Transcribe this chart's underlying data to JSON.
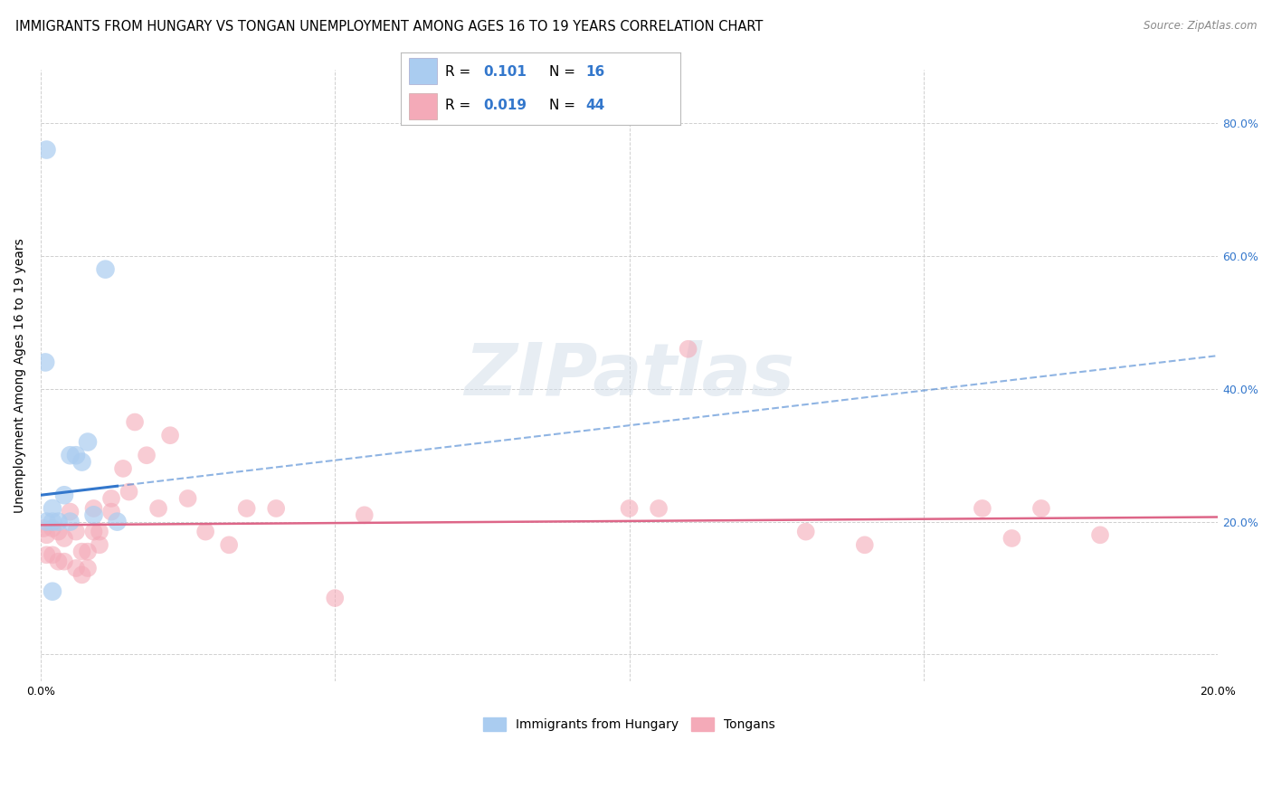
{
  "title": "IMMIGRANTS FROM HUNGARY VS TONGAN UNEMPLOYMENT AMONG AGES 16 TO 19 YEARS CORRELATION CHART",
  "source": "Source: ZipAtlas.com",
  "ylabel": "Unemployment Among Ages 16 to 19 years",
  "xlim": [
    0.0,
    0.2
  ],
  "ylim": [
    -0.04,
    0.88
  ],
  "background_color": "#ffffff",
  "grid_color": "#d0d0d0",
  "blue_color": "#aaccf0",
  "pink_color": "#f4aab8",
  "blue_line_color": "#3377cc",
  "pink_line_color": "#dd6688",
  "blue_scatter_x": [
    0.0008,
    0.001,
    0.002,
    0.002,
    0.003,
    0.004,
    0.005,
    0.005,
    0.006,
    0.007,
    0.008,
    0.009,
    0.011,
    0.013,
    0.001,
    0.002
  ],
  "blue_scatter_y": [
    0.44,
    0.2,
    0.22,
    0.2,
    0.2,
    0.24,
    0.3,
    0.2,
    0.3,
    0.29,
    0.32,
    0.21,
    0.58,
    0.2,
    0.76,
    0.095
  ],
  "pink_scatter_x": [
    0.0005,
    0.001,
    0.001,
    0.002,
    0.002,
    0.003,
    0.003,
    0.004,
    0.004,
    0.005,
    0.006,
    0.006,
    0.007,
    0.007,
    0.008,
    0.008,
    0.009,
    0.009,
    0.01,
    0.01,
    0.012,
    0.012,
    0.014,
    0.015,
    0.016,
    0.018,
    0.02,
    0.022,
    0.025,
    0.028,
    0.032,
    0.035,
    0.04,
    0.05,
    0.055,
    0.1,
    0.105,
    0.11,
    0.13,
    0.14,
    0.16,
    0.165,
    0.17,
    0.18
  ],
  "pink_scatter_y": [
    0.19,
    0.18,
    0.15,
    0.19,
    0.15,
    0.185,
    0.14,
    0.175,
    0.14,
    0.215,
    0.185,
    0.13,
    0.155,
    0.12,
    0.155,
    0.13,
    0.22,
    0.185,
    0.185,
    0.165,
    0.235,
    0.215,
    0.28,
    0.245,
    0.35,
    0.3,
    0.22,
    0.33,
    0.235,
    0.185,
    0.165,
    0.22,
    0.22,
    0.085,
    0.21,
    0.22,
    0.22,
    0.46,
    0.185,
    0.165,
    0.22,
    0.175,
    0.22,
    0.18
  ],
  "blue_line_x_start": 0.0,
  "blue_line_x_solid_end": 0.013,
  "blue_line_x_end": 0.2,
  "blue_line_y_at0": 0.24,
  "blue_line_slope": 1.05,
  "pink_line_y_at0": 0.195,
  "pink_line_slope": 0.06,
  "watermark_text": "ZIPatlas",
  "title_fontsize": 10.5,
  "label_fontsize": 10,
  "tick_fontsize": 9,
  "legend_fontsize": 11,
  "legend_color_text": "#3377cc"
}
